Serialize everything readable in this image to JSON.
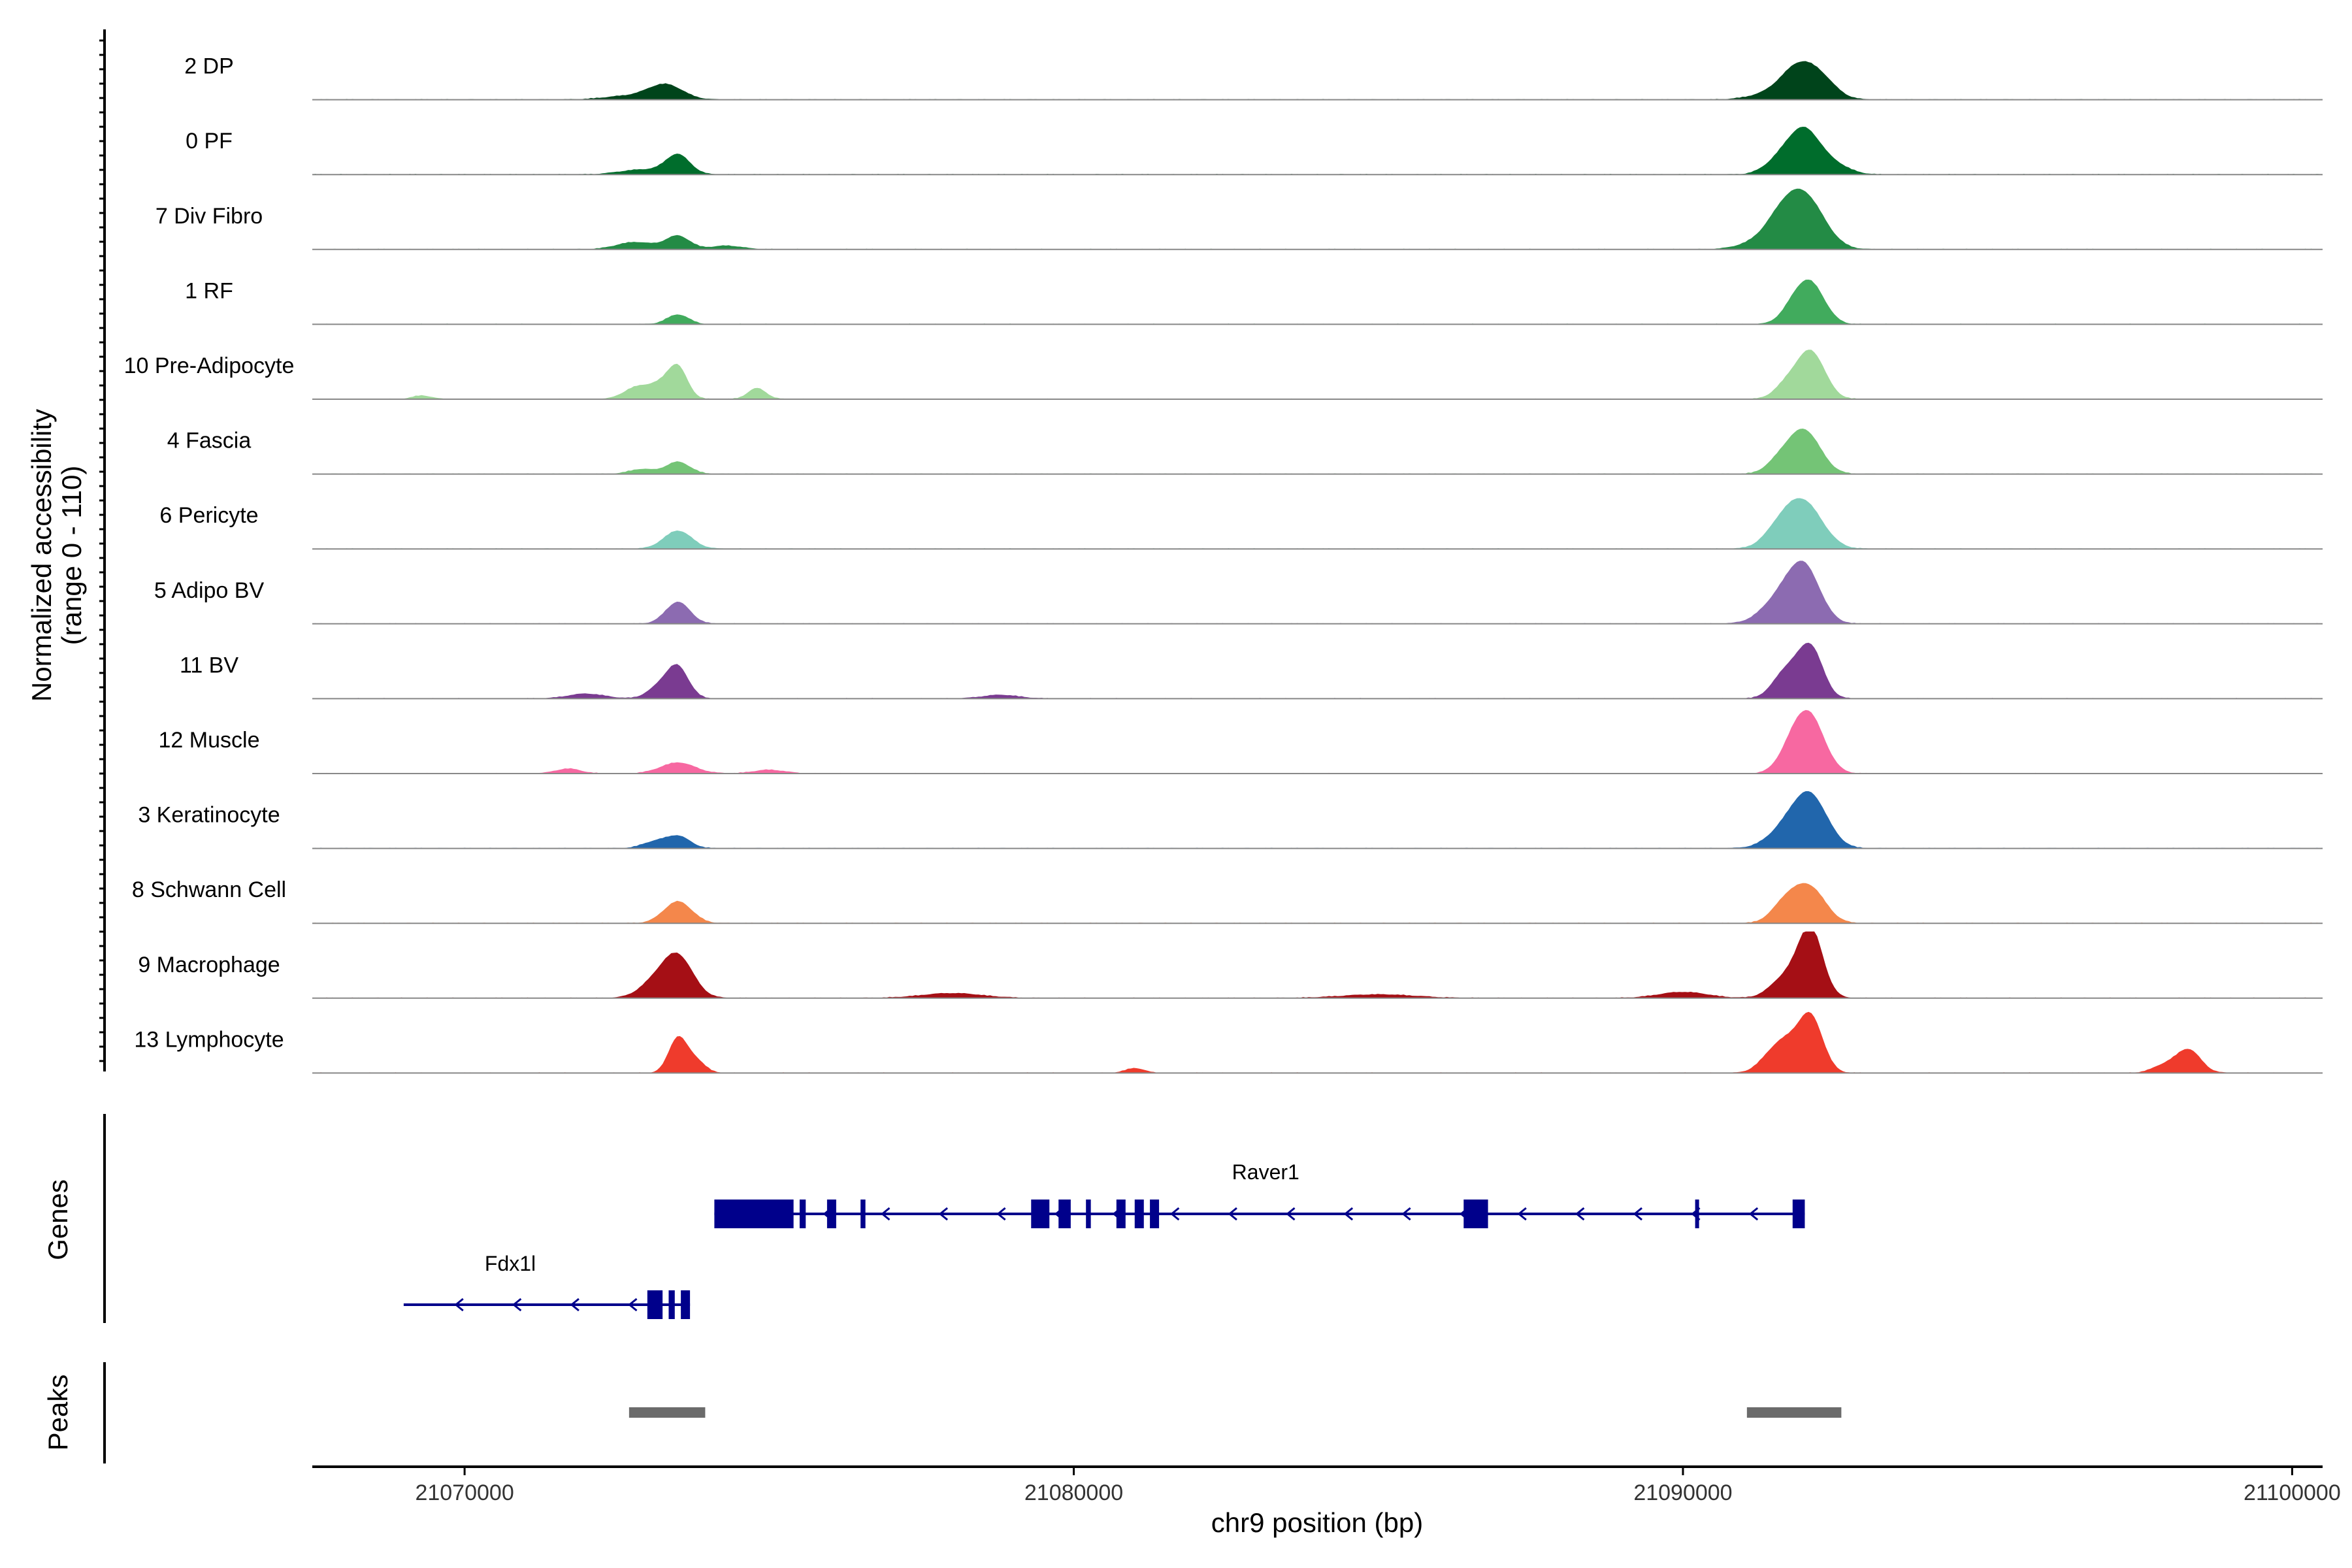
{
  "chart_data": {
    "type": "area",
    "xlabel": "chr9 position (bp)",
    "ylabel": "Normalized accessibility",
    "ylabel_range": "(range 0 - 110)",
    "ylim": [
      0,
      110
    ],
    "xlim": [
      21067500,
      21100500
    ],
    "x_ticks": [
      21070000,
      21080000,
      21090000,
      21100000
    ],
    "x_tick_labels": [
      "21070000",
      "21080000",
      "21090000",
      "21100000"
    ],
    "grid": false,
    "tracks": [
      {
        "name": "2 DP",
        "color": "#00441b",
        "peaks": [
          [
            21073300,
            24,
            280
          ],
          [
            21072700,
            6,
            400
          ],
          [
            21091900,
            55,
            300
          ],
          [
            21092300,
            22,
            250
          ],
          [
            21091300,
            6,
            300
          ]
        ]
      },
      {
        "name": "0 PF",
        "color": "#006d2c",
        "peaks": [
          [
            21073500,
            32,
            200
          ],
          [
            21072900,
            8,
            350
          ],
          [
            21092000,
            70,
            260
          ],
          [
            21091600,
            22,
            250
          ],
          [
            21092500,
            14,
            250
          ]
        ]
      },
      {
        "name": "7 Div Fibro",
        "color": "#238b45",
        "peaks": [
          [
            21073500,
            22,
            200
          ],
          [
            21072800,
            12,
            300
          ],
          [
            21074300,
            6,
            250
          ],
          [
            21092000,
            85,
            320
          ],
          [
            21091600,
            35,
            260
          ],
          [
            21091200,
            10,
            300
          ]
        ]
      },
      {
        "name": "1 RF",
        "color": "#41ab5d",
        "peaks": [
          [
            21073500,
            16,
            180
          ],
          [
            21092100,
            65,
            230
          ],
          [
            21091800,
            22,
            200
          ]
        ]
      },
      {
        "name": "10 Pre-Adipocyte",
        "color": "#a1d99b",
        "peaks": [
          [
            21073500,
            50,
            160
          ],
          [
            21072800,
            18,
            200
          ],
          [
            21073200,
            22,
            200
          ],
          [
            21074800,
            18,
            150
          ],
          [
            21092100,
            78,
            230
          ],
          [
            21091700,
            22,
            200
          ],
          [
            21069300,
            6,
            150
          ]
        ]
      },
      {
        "name": "4 Fascia",
        "color": "#74c476",
        "peaks": [
          [
            21073500,
            20,
            200
          ],
          [
            21072900,
            8,
            200
          ],
          [
            21092000,
            70,
            260
          ],
          [
            21091600,
            20,
            220
          ]
        ]
      },
      {
        "name": "6 Pericyte",
        "color": "#7fcdbb",
        "peaks": [
          [
            21073500,
            30,
            230
          ],
          [
            21092000,
            72,
            300
          ],
          [
            21091600,
            30,
            260
          ]
        ]
      },
      {
        "name": "5 Adipo BV",
        "color": "#8c6bb1",
        "peaks": [
          [
            21073500,
            36,
            200
          ],
          [
            21092000,
            85,
            260
          ],
          [
            21091600,
            40,
            300
          ]
        ]
      },
      {
        "name": "11 BV",
        "color": "#7a3b91",
        "peaks": [
          [
            21073500,
            50,
            180
          ],
          [
            21073200,
            18,
            200
          ],
          [
            21092100,
            82,
            200
          ],
          [
            21091700,
            45,
            220
          ],
          [
            21072000,
            8,
            300
          ],
          [
            21078800,
            6,
            300
          ]
        ]
      },
      {
        "name": "12 Muscle",
        "color": "#f768a1",
        "peaks": [
          [
            21073500,
            18,
            280
          ],
          [
            21071700,
            8,
            200
          ],
          [
            21092100,
            85,
            240
          ],
          [
            21091800,
            40,
            220
          ],
          [
            21075000,
            6,
            250
          ]
        ]
      },
      {
        "name": "3 Keratinocyte",
        "color": "#2166ac",
        "peaks": [
          [
            21073500,
            20,
            200
          ],
          [
            21073100,
            10,
            200
          ],
          [
            21092100,
            80,
            280
          ],
          [
            21091700,
            30,
            300
          ]
        ]
      },
      {
        "name": "8 Schwann Cell",
        "color": "#f4874b",
        "peaks": [
          [
            21073500,
            36,
            230
          ],
          [
            21092100,
            55,
            250
          ],
          [
            21091700,
            35,
            230
          ]
        ]
      },
      {
        "name": "9 Macrophage",
        "color": "#a50f15",
        "peaks": [
          [
            21073500,
            68,
            250
          ],
          [
            21073100,
            22,
            250
          ],
          [
            21092100,
            110,
            200
          ],
          [
            21091700,
            35,
            250
          ],
          [
            21090000,
            10,
            400
          ],
          [
            21078000,
            8,
            500
          ],
          [
            21085000,
            6,
            600
          ]
        ]
      },
      {
        "name": "13 Lymphocyte",
        "color": "#ef3b2c",
        "peaks": [
          [
            21073500,
            58,
            150
          ],
          [
            21073800,
            20,
            150
          ],
          [
            21092100,
            90,
            200
          ],
          [
            21091700,
            45,
            220
          ],
          [
            21091400,
            18,
            200
          ],
          [
            21098300,
            38,
            200
          ],
          [
            21097900,
            12,
            200
          ],
          [
            21081000,
            8,
            150
          ]
        ]
      }
    ],
    "genes": [
      {
        "name": "Raver1",
        "strand": "-",
        "start": 21074100,
        "end": 21092000,
        "exons": [
          [
            21074100,
            21075400
          ],
          [
            21075500,
            21075600
          ],
          [
            21075950,
            21076100
          ],
          [
            21076500,
            21076580
          ],
          [
            21079300,
            21079600
          ],
          [
            21079750,
            21079950
          ],
          [
            21080200,
            21080280
          ],
          [
            21080700,
            21080850
          ],
          [
            21081000,
            21081150
          ],
          [
            21081250,
            21081400
          ],
          [
            21086400,
            21086800
          ],
          [
            21090200,
            21090260
          ],
          [
            21091800,
            21092000
          ]
        ]
      },
      {
        "name": "Fdx1l",
        "strand": "-",
        "start": 21069000,
        "end": 21073700,
        "exons": [
          [
            21073000,
            21073250
          ],
          [
            21073350,
            21073450
          ],
          [
            21073550,
            21073700
          ]
        ]
      }
    ],
    "peak_regions": [
      [
        21072700,
        21073950
      ],
      [
        21091050,
        21092600
      ]
    ]
  }
}
